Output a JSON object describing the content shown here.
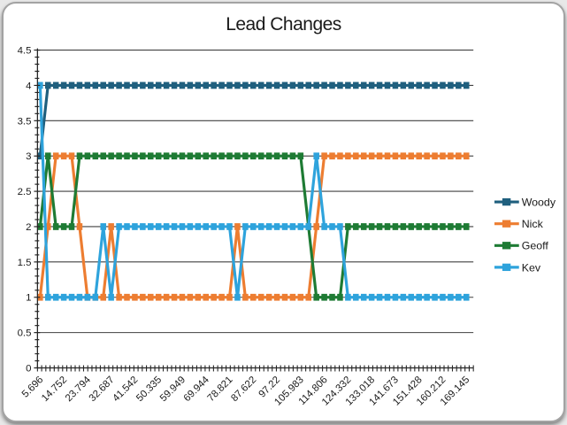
{
  "window": {
    "title": "Lead Changes"
  },
  "chart_data": {
    "type": "line",
    "title": "Lead Changes",
    "xlabel": "",
    "ylabel": "",
    "ylim": [
      0,
      4.5
    ],
    "y_tick_step": 0.5,
    "y_minor_tick_step": 0.1,
    "grid": "horizontal",
    "legend_position": "right",
    "marker_style": "square",
    "y_tick_labels": [
      "4.5",
      "4",
      "3.5",
      "3",
      "2.5",
      "2",
      "1.5",
      "1",
      "0.5",
      "0"
    ],
    "x_tick_labels": [
      "5.696",
      "14.752",
      "23.794",
      "32.687",
      "41.542",
      "50.335",
      "59.949",
      "69.944",
      "78.821",
      "87.622",
      "97.22",
      "105.983",
      "114.806",
      "124.332",
      "133.018",
      "141.673",
      "151.428",
      "160.212",
      "169.145"
    ],
    "x_label_every_n_points": 3,
    "points_per_series": 55,
    "text_color": "#1a1a1a",
    "gridline_color": "#404040",
    "axis_color": "#262626",
    "series": [
      {
        "name": "Woody",
        "color": "#1F5F7E",
        "values": [
          3,
          4,
          4,
          4,
          4,
          4,
          4,
          4,
          4,
          4,
          4,
          4,
          4,
          4,
          4,
          4,
          4,
          4,
          4,
          4,
          4,
          4,
          4,
          4,
          4,
          4,
          4,
          4,
          4,
          4,
          4,
          4,
          4,
          4,
          4,
          4,
          4,
          4,
          4,
          4,
          4,
          4,
          4,
          4,
          4,
          4,
          4,
          4,
          4,
          4,
          4,
          4,
          4,
          4,
          4
        ]
      },
      {
        "name": "Nick",
        "color": "#ED7D31",
        "values": [
          1,
          2,
          3,
          3,
          3,
          2,
          1,
          1,
          1,
          2,
          1,
          1,
          1,
          1,
          1,
          1,
          1,
          1,
          1,
          1,
          1,
          1,
          1,
          1,
          1,
          2,
          1,
          1,
          1,
          1,
          1,
          1,
          1,
          1,
          1,
          2,
          3,
          3,
          3,
          3,
          3,
          3,
          3,
          3,
          3,
          3,
          3,
          3,
          3,
          3,
          3,
          3,
          3,
          3,
          3
        ]
      },
      {
        "name": "Geoff",
        "color": "#1E7B34",
        "values": [
          2,
          3,
          2,
          2,
          2,
          3,
          3,
          3,
          3,
          3,
          3,
          3,
          3,
          3,
          3,
          3,
          3,
          3,
          3,
          3,
          3,
          3,
          3,
          3,
          3,
          3,
          3,
          3,
          3,
          3,
          3,
          3,
          3,
          3,
          2,
          1,
          1,
          1,
          1,
          2,
          2,
          2,
          2,
          2,
          2,
          2,
          2,
          2,
          2,
          2,
          2,
          2,
          2,
          2,
          2
        ]
      },
      {
        "name": "Kev",
        "color": "#2EA3DC",
        "values": [
          4,
          1,
          1,
          1,
          1,
          1,
          1,
          1,
          2,
          1,
          2,
          2,
          2,
          2,
          2,
          2,
          2,
          2,
          2,
          2,
          2,
          2,
          2,
          2,
          2,
          1,
          2,
          2,
          2,
          2,
          2,
          2,
          2,
          2,
          2,
          3,
          2,
          2,
          2,
          1,
          1,
          1,
          1,
          1,
          1,
          1,
          1,
          1,
          1,
          1,
          1,
          1,
          1,
          1,
          1
        ]
      }
    ]
  }
}
